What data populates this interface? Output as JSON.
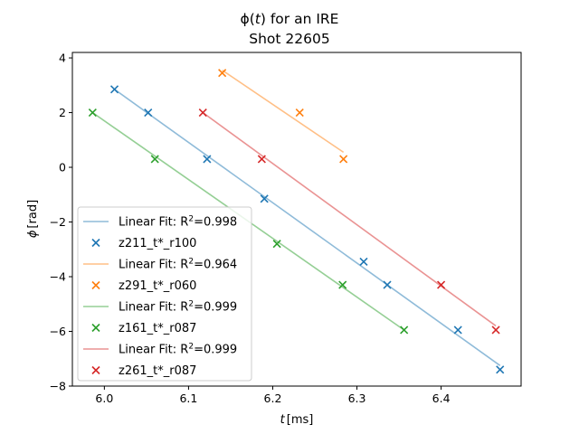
{
  "chart_data": {
    "type": "scatter",
    "title_line1_pre": "ϕ(",
    "title_line1_var": "t",
    "title_line1_post": ") for an IRE",
    "title_line2": "Shot 22605",
    "xlabel_var": "t",
    "xlabel_unit": "[ms]",
    "ylabel_var": "ϕ",
    "ylabel_unit": "[rad]",
    "xlim": [
      5.962,
      6.495
    ],
    "ylim": [
      -8,
      4.2
    ],
    "xticks": [
      6.0,
      6.1,
      6.2,
      6.3,
      6.4
    ],
    "xtick_labels": [
      "6.0",
      "6.1",
      "6.2",
      "6.3",
      "6.4"
    ],
    "yticks": [
      -8,
      -6,
      -4,
      -2,
      0,
      2,
      4
    ],
    "ytick_labels": [
      "−8",
      "−6",
      "−4",
      "−2",
      "0",
      "2",
      "4"
    ],
    "grid": false,
    "legend_placement": "lower-left",
    "series": [
      {
        "name": "z211_t*_r100",
        "color": "#1f77b4",
        "fit_label": "Linear Fit: R",
        "fit_exp": "2",
        "fit_value": "=0.998",
        "fit_line": {
          "x": [
            6.012,
            6.47
          ],
          "y": [
            2.85,
            -7.25
          ]
        },
        "points": [
          {
            "x": 6.012,
            "y": 2.85
          },
          {
            "x": 6.052,
            "y": 2.0
          },
          {
            "x": 6.122,
            "y": 0.3
          },
          {
            "x": 6.19,
            "y": -1.15
          },
          {
            "x": 6.308,
            "y": -3.45
          },
          {
            "x": 6.336,
            "y": -4.3
          },
          {
            "x": 6.42,
            "y": -5.95
          },
          {
            "x": 6.47,
            "y": -7.4
          }
        ]
      },
      {
        "name": "z291_t*_r060",
        "color": "#ff7f0e",
        "fit_label": "Linear Fit: R",
        "fit_exp": "2",
        "fit_value": "=0.964",
        "fit_line": {
          "x": [
            6.14,
            6.284
          ],
          "y": [
            3.55,
            0.55
          ]
        },
        "points": [
          {
            "x": 6.14,
            "y": 3.45
          },
          {
            "x": 6.232,
            "y": 2.0
          },
          {
            "x": 6.284,
            "y": 0.3
          }
        ]
      },
      {
        "name": "z161_t*_r087",
        "color": "#2ca02c",
        "fit_label": "Linear Fit: R",
        "fit_exp": "2",
        "fit_value": "=0.999",
        "fit_line": {
          "x": [
            5.986,
            6.356
          ],
          "y": [
            2.0,
            -5.95
          ]
        },
        "points": [
          {
            "x": 5.986,
            "y": 2.0
          },
          {
            "x": 6.06,
            "y": 0.3
          },
          {
            "x": 6.205,
            "y": -2.8
          },
          {
            "x": 6.283,
            "y": -4.3
          },
          {
            "x": 6.356,
            "y": -5.95
          }
        ]
      },
      {
        "name": "z261_t*_r087",
        "color": "#d62728",
        "fit_label": "Linear Fit: R",
        "fit_exp": "2",
        "fit_value": "=0.999",
        "fit_line": {
          "x": [
            6.117,
            6.465
          ],
          "y": [
            2.0,
            -5.8
          ]
        },
        "points": [
          {
            "x": 6.117,
            "y": 2.0
          },
          {
            "x": 6.187,
            "y": 0.3
          },
          {
            "x": 6.4,
            "y": -4.3
          },
          {
            "x": 6.465,
            "y": -5.95
          }
        ]
      }
    ]
  }
}
